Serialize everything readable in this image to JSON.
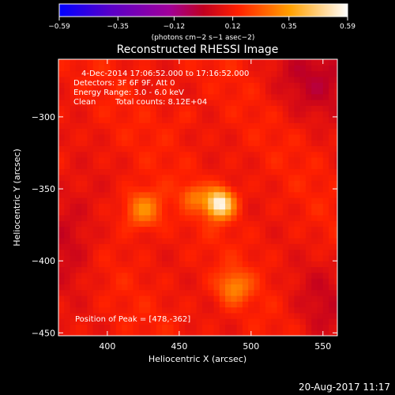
{
  "chart_data": {
    "type": "heatmap",
    "title": "Reconstructed RHESSI Image",
    "xlabel": "Heliocentric X (arcsec)",
    "ylabel": "Heliocentric Y (arcsec)",
    "xlim": [
      366,
      560
    ],
    "ylim": [
      -452,
      -260
    ],
    "x_ticks": [
      400,
      450,
      500,
      550
    ],
    "y_ticks": [
      -300,
      -350,
      -400,
      -450
    ],
    "colorbar": {
      "ticks": [
        -0.59,
        -0.35,
        -0.12,
        0.12,
        0.35,
        0.59
      ],
      "tick_labels": [
        "−0.59",
        "−0.35",
        "−0.12",
        "0.12",
        "0.35",
        "0.59"
      ],
      "range": [
        -0.59,
        0.59
      ],
      "label": "(photons cm−2 s−1 asec−2)"
    },
    "peak": [
      478,
      -362
    ],
    "sources": [
      {
        "x": 478,
        "y": -360,
        "value": 0.59,
        "sigma": 7
      },
      {
        "x": 425,
        "y": -364,
        "value": 0.33,
        "sigma": 9
      },
      {
        "x": 460,
        "y": -355,
        "value": 0.26,
        "sigma": 6
      },
      {
        "x": 488,
        "y": -418,
        "value": 0.31,
        "sigma": 8
      },
      {
        "x": 452,
        "y": -300,
        "value": 0.15,
        "sigma": 7
      }
    ],
    "annotations": {
      "time": "4-Dec-2014 17:06:52.000 to 17:16:52.000",
      "detectors": "Detectors: 3F 6F 9F, Att 0",
      "energy": "Energy Range: 3.0 - 6.0 keV",
      "method": "Clean",
      "counts": "Total counts: 8.12E+04",
      "peak_text": "Position of Peak = [478,-362]"
    }
  },
  "footer": {
    "timestamp": "20-Aug-2017 11:17"
  }
}
